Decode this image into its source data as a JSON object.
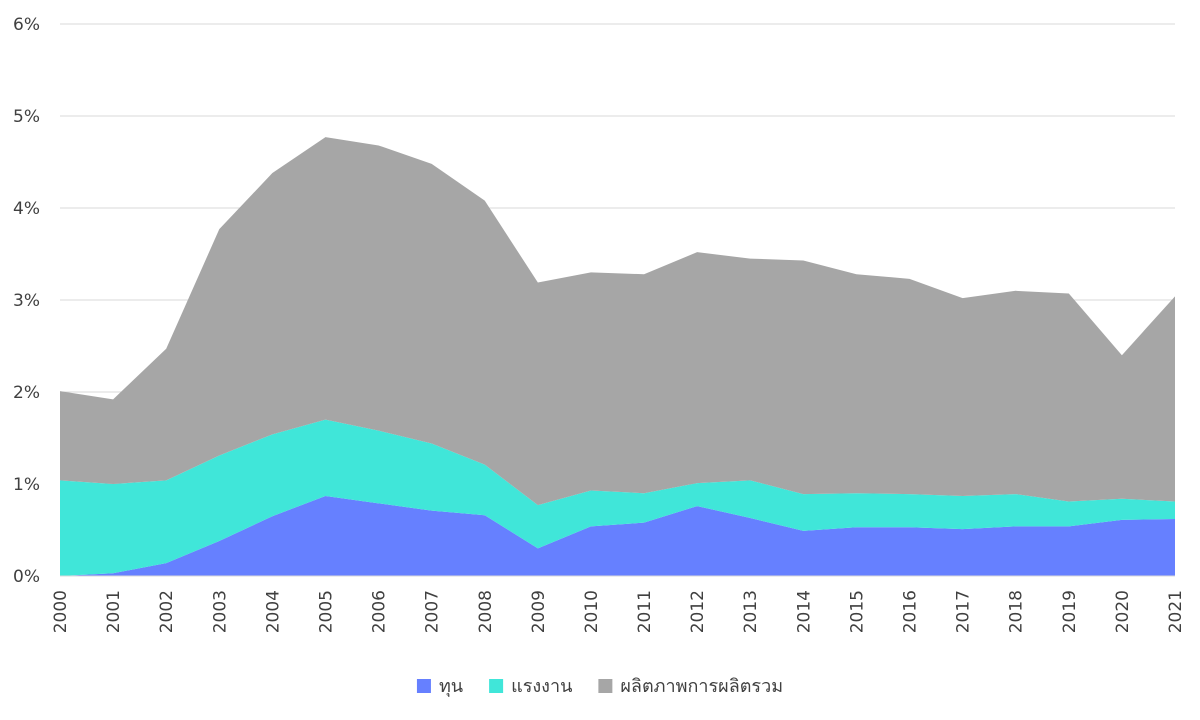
{
  "chart_data": {
    "type": "area",
    "stacked": true,
    "x": [
      "2000",
      "2001",
      "2002",
      "2003",
      "2004",
      "2005",
      "2006",
      "2007",
      "2008",
      "2009",
      "2010",
      "2011",
      "2012",
      "2013",
      "2014",
      "2015",
      "2016",
      "2017",
      "2018",
      "2019",
      "2020",
      "2021"
    ],
    "series": [
      {
        "name": "ทุน",
        "color": "#6680FF",
        "values": [
          0.0,
          0.03,
          0.14,
          0.38,
          0.65,
          0.87,
          0.79,
          0.71,
          0.66,
          0.3,
          0.54,
          0.58,
          0.76,
          0.63,
          0.49,
          0.53,
          0.53,
          0.51,
          0.54,
          0.54,
          0.61,
          0.62
        ]
      },
      {
        "name": "แรงงาน",
        "color": "#40E6D9",
        "values": [
          1.04,
          0.97,
          0.9,
          0.93,
          0.89,
          0.83,
          0.79,
          0.73,
          0.55,
          0.47,
          0.39,
          0.32,
          0.25,
          0.41,
          0.4,
          0.37,
          0.36,
          0.36,
          0.35,
          0.27,
          0.23,
          0.19
        ]
      },
      {
        "name": "ผลิตภาพการผลิตรวม",
        "color": "#A6A6A6",
        "values": [
          0.97,
          0.92,
          1.43,
          2.46,
          2.84,
          3.07,
          3.1,
          3.04,
          2.87,
          2.42,
          2.37,
          2.38,
          2.51,
          2.41,
          2.54,
          2.38,
          2.34,
          2.15,
          2.21,
          2.26,
          1.56,
          2.23
        ]
      }
    ],
    "y_ticks": [
      "0%",
      "1%",
      "2%",
      "3%",
      "4%",
      "5%",
      "6%"
    ],
    "ylim": [
      0,
      6
    ],
    "y_unit": "%",
    "grid": true,
    "legend_position": "bottom"
  }
}
